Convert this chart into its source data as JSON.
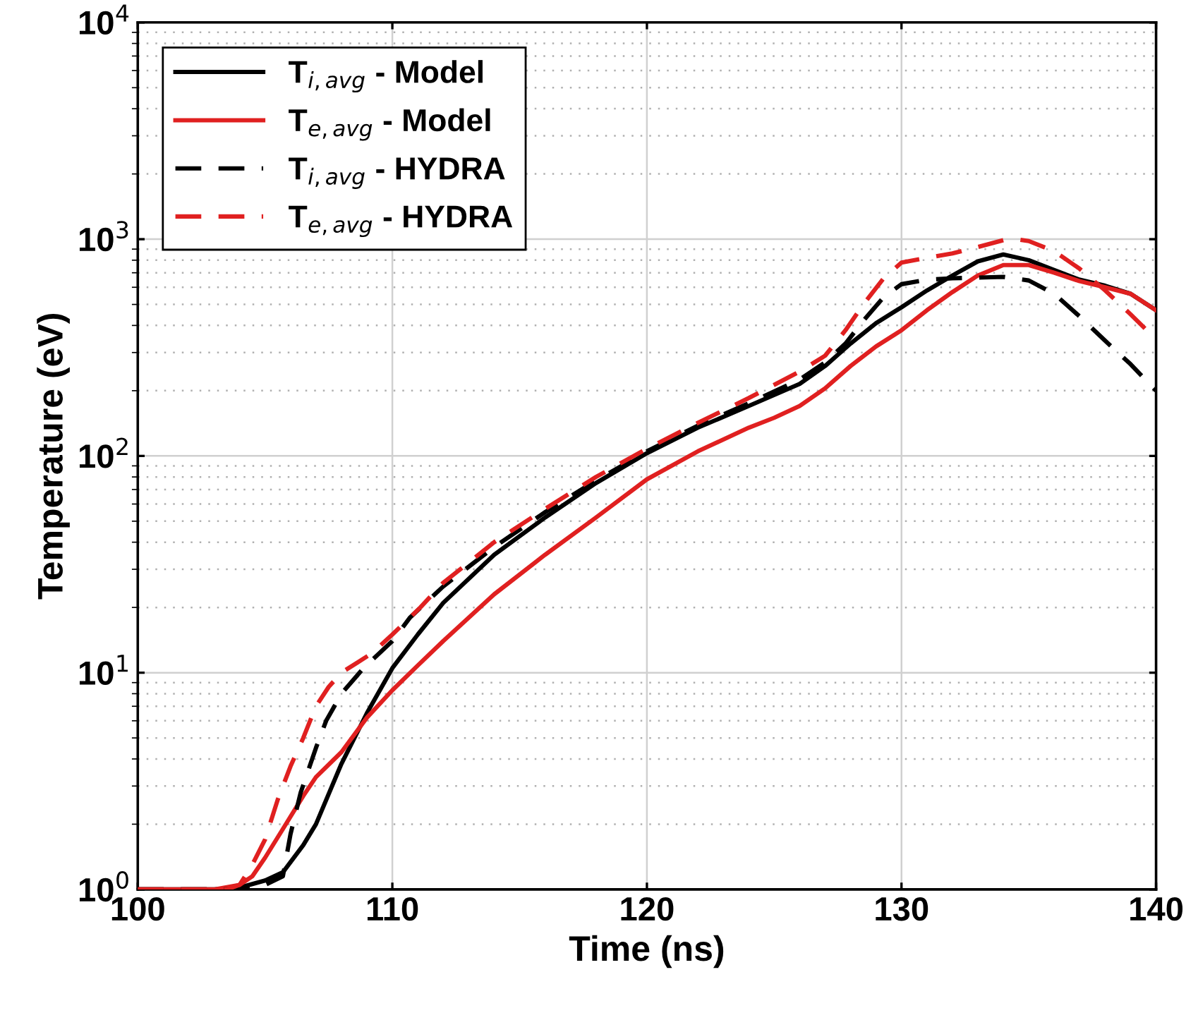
{
  "chart_data": {
    "type": "line",
    "xlabel": "Time (ns)",
    "ylabel": "Temperature (eV)",
    "log": "y",
    "grid": true,
    "legend": "top left",
    "xlim": [
      100,
      140
    ],
    "xticks": [
      100,
      110,
      120,
      130,
      140
    ],
    "ylim": [
      1,
      10000
    ],
    "yticks": [
      {
        "value": 1,
        "label": "10$^{0}$"
      },
      {
        "value": 10,
        "label": "10$^{1}$"
      },
      {
        "value": 100,
        "label": "10$^{2}$"
      },
      {
        "value": 1000,
        "label": "10$^{3}$"
      },
      {
        "value": 10000,
        "label": "10$^{4}$"
      }
    ],
    "series": [
      {
        "name": "T$_{i,avg}$ - Model",
        "color": "#000000",
        "line_style": "solid",
        "x": [
          100,
          103,
          104,
          105,
          105.7,
          106.5,
          107,
          108,
          109,
          110,
          111,
          112,
          114,
          116,
          118,
          120,
          122,
          124,
          126,
          127,
          128,
          129,
          130,
          131,
          132,
          133,
          134,
          135,
          136,
          137,
          138,
          139,
          140
        ],
        "values": [
          1,
          1,
          1.02,
          1.1,
          1.2,
          1.6,
          2.0,
          3.8,
          6.5,
          10.5,
          15,
          21,
          35,
          52,
          75,
          103,
          135,
          170,
          215,
          260,
          330,
          410,
          485,
          580,
          680,
          790,
          850,
          800,
          720,
          650,
          610,
          560,
          470
        ]
      },
      {
        "name": "T$_{e,avg}$ - Model",
        "color": "#e02020",
        "line_style": "solid",
        "x": [
          100,
          103,
          104,
          104.5,
          105,
          105.7,
          106.5,
          107,
          108,
          109,
          110,
          111,
          112,
          114,
          116,
          118,
          120,
          122,
          124,
          125,
          126,
          127,
          128,
          129,
          130,
          131,
          132,
          133,
          134,
          135,
          136,
          137,
          138,
          139,
          140
        ],
        "values": [
          1,
          1,
          1.05,
          1.15,
          1.4,
          1.9,
          2.7,
          3.3,
          4.3,
          6.2,
          8.3,
          10.8,
          14,
          23,
          35,
          52,
          78,
          105,
          135,
          150,
          170,
          205,
          260,
          320,
          380,
          470,
          570,
          680,
          760,
          760,
          700,
          640,
          600,
          560,
          470
        ]
      },
      {
        "name": "T$_{i,avg}$ - HYDRA",
        "color": "#000000",
        "line_style": "dashed",
        "x": [
          100,
          104,
          105,
          105.7,
          106,
          106.4,
          107,
          107.4,
          108,
          108.9,
          110,
          110.7,
          112,
          114,
          116,
          118,
          120,
          122,
          124,
          126,
          127,
          127.8,
          128.5,
          129.3,
          130,
          131,
          132,
          133,
          134,
          135,
          136,
          137,
          138,
          139,
          140
        ],
        "values": [
          1,
          1,
          1.05,
          1.15,
          1.8,
          2.8,
          4.5,
          6,
          8,
          10.6,
          14,
          18,
          25,
          38,
          55,
          77,
          105,
          138,
          175,
          225,
          270,
          330,
          420,
          540,
          620,
          650,
          660,
          665,
          670,
          645,
          560,
          440,
          340,
          265,
          200
        ]
      },
      {
        "name": "T$_{e,avg}$ - HYDRA",
        "color": "#e02020",
        "line_style": "dashed",
        "x": [
          100,
          103.5,
          104,
          104.5,
          105,
          105.5,
          106,
          106.5,
          107,
          107.5,
          108,
          109.2,
          110,
          111.1,
          112,
          114,
          116,
          118,
          120,
          122,
          124,
          126,
          127,
          127.8,
          128.5,
          129.3,
          130,
          131,
          132,
          133,
          134,
          134.5,
          135,
          136,
          137,
          138,
          139,
          140
        ],
        "values": [
          1,
          1,
          1.05,
          1.3,
          1.7,
          2.6,
          3.7,
          5,
          7,
          8.6,
          10,
          12.3,
          15,
          20,
          26,
          40,
          57,
          80,
          108,
          142,
          185,
          245,
          290,
          380,
          500,
          660,
          780,
          820,
          860,
          920,
          990,
          1000,
          980,
          880,
          730,
          580,
          450,
          345
        ]
      }
    ]
  }
}
